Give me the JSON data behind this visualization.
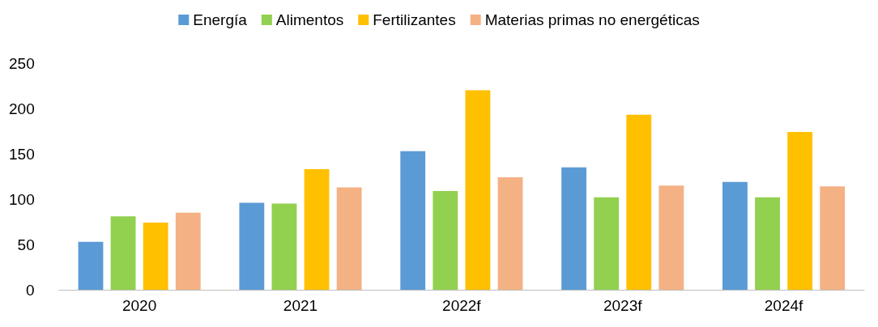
{
  "chart_data": {
    "type": "bar",
    "categories": [
      "2020",
      "2021",
      "2022f",
      "2023f",
      "2024f"
    ],
    "series": [
      {
        "name": "Energía",
        "color": "#5b9bd5",
        "values": [
          53,
          96,
          153,
          135,
          119
        ]
      },
      {
        "name": "Alimentos",
        "color": "#92d050",
        "values": [
          81,
          95,
          109,
          102,
          102
        ]
      },
      {
        "name": "Fertilizantes",
        "color": "#ffc000",
        "values": [
          74,
          133,
          220,
          193,
          174
        ]
      },
      {
        "name": "Materias primas no energéticas",
        "color": "#f4b183",
        "values": [
          85,
          113,
          124,
          115,
          114
        ]
      }
    ],
    "ylim": [
      0,
      250
    ],
    "yticks": [
      0,
      50,
      100,
      150,
      200,
      250
    ],
    "grid": false,
    "legend": "top"
  }
}
